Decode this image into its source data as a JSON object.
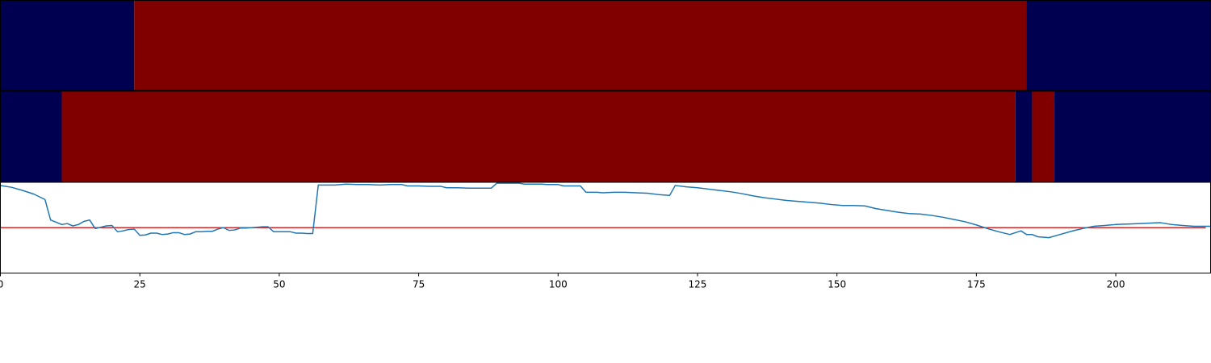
{
  "chart_data": [
    {
      "type": "heatmap",
      "xlim": [
        0,
        217
      ],
      "colors": {
        "low": "#000050",
        "high": "#800000"
      },
      "segments": [
        {
          "start": 0,
          "end": 24,
          "state": "low"
        },
        {
          "start": 24,
          "end": 184,
          "state": "high"
        },
        {
          "start": 184,
          "end": 217,
          "state": "low"
        }
      ]
    },
    {
      "type": "heatmap",
      "xlim": [
        0,
        217
      ],
      "colors": {
        "low": "#000050",
        "high": "#800000"
      },
      "segments": [
        {
          "start": 0,
          "end": 11,
          "state": "low"
        },
        {
          "start": 11,
          "end": 182,
          "state": "high"
        },
        {
          "start": 182,
          "end": 185,
          "state": "low"
        },
        {
          "start": 185,
          "end": 189,
          "state": "high"
        },
        {
          "start": 189,
          "end": 217,
          "state": "low"
        }
      ]
    },
    {
      "type": "line",
      "xlim": [
        0,
        217
      ],
      "ylim": [
        -1,
        1
      ],
      "xticks": [
        0,
        25,
        50,
        75,
        100,
        125,
        150,
        175,
        200
      ],
      "threshold": {
        "value": 0,
        "color": "#d62728"
      },
      "series": [
        {
          "color": "#1f77b4",
          "points": [
            [
              0,
              0.93
            ],
            [
              2,
              0.89
            ],
            [
              4,
              0.82
            ],
            [
              6,
              0.74
            ],
            [
              8,
              0.62
            ],
            [
              9,
              0.17
            ],
            [
              11,
              0.07
            ],
            [
              12,
              0.09
            ],
            [
              13,
              0.04
            ],
            [
              14,
              0.07
            ],
            [
              15,
              0.14
            ],
            [
              16,
              0.17
            ],
            [
              17,
              -0.02
            ],
            [
              18,
              0.01
            ],
            [
              19,
              0.04
            ],
            [
              20,
              0.05
            ],
            [
              21,
              -0.09
            ],
            [
              22,
              -0.07
            ],
            [
              23,
              -0.04
            ],
            [
              24,
              -0.03
            ],
            [
              25,
              -0.17
            ],
            [
              26,
              -0.16
            ],
            [
              27,
              -0.12
            ],
            [
              28,
              -0.12
            ],
            [
              29,
              -0.15
            ],
            [
              30,
              -0.14
            ],
            [
              31,
              -0.11
            ],
            [
              32,
              -0.11
            ],
            [
              33,
              -0.15
            ],
            [
              34,
              -0.14
            ],
            [
              35,
              -0.09
            ],
            [
              36,
              -0.09
            ],
            [
              37,
              -0.08
            ],
            [
              38,
              -0.08
            ],
            [
              39,
              -0.03
            ],
            [
              40,
              0.0
            ],
            [
              41,
              -0.06
            ],
            [
              42,
              -0.05
            ],
            [
              43,
              -0.01
            ],
            [
              44,
              -0.01
            ],
            [
              45,
              0.0
            ],
            [
              46,
              0.01
            ],
            [
              47,
              0.02
            ],
            [
              48,
              0.02
            ],
            [
              49,
              -0.09
            ],
            [
              50,
              -0.09
            ],
            [
              51,
              -0.09
            ],
            [
              52,
              -0.09
            ],
            [
              53,
              -0.12
            ],
            [
              54,
              -0.12
            ],
            [
              55,
              -0.13
            ],
            [
              56,
              -0.13
            ],
            [
              57,
              0.94
            ],
            [
              58,
              0.94
            ],
            [
              60,
              0.94
            ],
            [
              62,
              0.96
            ],
            [
              64,
              0.95
            ],
            [
              66,
              0.95
            ],
            [
              68,
              0.94
            ],
            [
              70,
              0.95
            ],
            [
              72,
              0.95
            ],
            [
              73,
              0.92
            ],
            [
              75,
              0.92
            ],
            [
              77,
              0.91
            ],
            [
              79,
              0.91
            ],
            [
              80,
              0.88
            ],
            [
              82,
              0.88
            ],
            [
              84,
              0.87
            ],
            [
              86,
              0.87
            ],
            [
              88,
              0.87
            ],
            [
              89,
              0.98
            ],
            [
              91,
              0.98
            ],
            [
              93,
              0.98
            ],
            [
              94,
              0.96
            ],
            [
              96,
              0.96
            ],
            [
              97,
              0.96
            ],
            [
              98,
              0.95
            ],
            [
              100,
              0.95
            ],
            [
              101,
              0.92
            ],
            [
              104,
              0.92
            ],
            [
              105,
              0.78
            ],
            [
              107,
              0.78
            ],
            [
              108,
              0.77
            ],
            [
              110,
              0.78
            ],
            [
              112,
              0.78
            ],
            [
              114,
              0.77
            ],
            [
              116,
              0.76
            ],
            [
              118,
              0.73
            ],
            [
              120,
              0.71
            ],
            [
              121,
              0.93
            ],
            [
              123,
              0.9
            ],
            [
              125,
              0.88
            ],
            [
              127,
              0.85
            ],
            [
              129,
              0.82
            ],
            [
              131,
              0.79
            ],
            [
              133,
              0.75
            ],
            [
              135,
              0.7
            ],
            [
              137,
              0.66
            ],
            [
              139,
              0.63
            ],
            [
              141,
              0.6
            ],
            [
              143,
              0.58
            ],
            [
              145,
              0.56
            ],
            [
              147,
              0.54
            ],
            [
              149,
              0.51
            ],
            [
              151,
              0.49
            ],
            [
              153,
              0.49
            ],
            [
              155,
              0.48
            ],
            [
              157,
              0.42
            ],
            [
              159,
              0.38
            ],
            [
              161,
              0.34
            ],
            [
              163,
              0.31
            ],
            [
              165,
              0.3
            ],
            [
              167,
              0.27
            ],
            [
              169,
              0.23
            ],
            [
              171,
              0.18
            ],
            [
              173,
              0.13
            ],
            [
              175,
              0.06
            ],
            [
              177,
              -0.02
            ],
            [
              179,
              -0.09
            ],
            [
              181,
              -0.15
            ],
            [
              183,
              -0.07
            ],
            [
              184,
              -0.15
            ],
            [
              185,
              -0.15
            ],
            [
              186,
              -0.2
            ],
            [
              188,
              -0.22
            ],
            [
              190,
              -0.15
            ],
            [
              192,
              -0.08
            ],
            [
              194,
              -0.02
            ],
            [
              196,
              0.03
            ],
            [
              198,
              0.05
            ],
            [
              200,
              0.07
            ],
            [
              202,
              0.08
            ],
            [
              204,
              0.09
            ],
            [
              206,
              0.1
            ],
            [
              208,
              0.11
            ],
            [
              210,
              0.07
            ],
            [
              212,
              0.05
            ],
            [
              214,
              0.03
            ],
            [
              216,
              0.03
            ],
            [
              217,
              0.03
            ]
          ]
        }
      ]
    }
  ]
}
